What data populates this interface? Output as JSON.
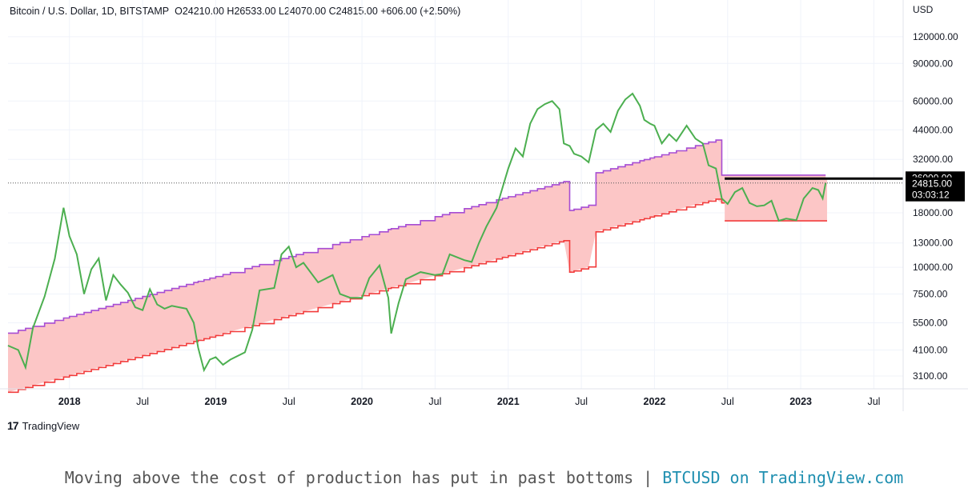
{
  "header": {
    "symbol": "Bitcoin / U.S. Dollar, 1D, BITSTAMP",
    "ohlc": "O24210.00  H26533.00  L24070.00  C24815.00  +606.00 (+2.50%)"
  },
  "price_axis": {
    "unit": "USD",
    "ticks": [
      "120000.00",
      "90000.00",
      "60000.00",
      "44000.00",
      "32000.00",
      "18000.00",
      "13000.00",
      "10000.00",
      "7500.00",
      "5500.00",
      "4100.00",
      "3100.00"
    ],
    "tick_values": [
      120000,
      90000,
      60000,
      44000,
      32000,
      18000,
      13000,
      10000,
      7500,
      5500,
      4100,
      3100
    ],
    "label_26000": "26000.00",
    "label_last": "24815.00",
    "label_countdown": "03:03:12"
  },
  "time_axis": {
    "labels": [
      {
        "text": "2018",
        "bold": true,
        "t": 2018.0
      },
      {
        "text": "Jul",
        "bold": false,
        "t": 2018.5
      },
      {
        "text": "2019",
        "bold": true,
        "t": 2019.0
      },
      {
        "text": "Jul",
        "bold": false,
        "t": 2019.5
      },
      {
        "text": "2020",
        "bold": true,
        "t": 2020.0
      },
      {
        "text": "Jul",
        "bold": false,
        "t": 2020.5
      },
      {
        "text": "2021",
        "bold": true,
        "t": 2021.0
      },
      {
        "text": "Jul",
        "bold": false,
        "t": 2021.5
      },
      {
        "text": "2022",
        "bold": true,
        "t": 2022.0
      },
      {
        "text": "Jul",
        "bold": false,
        "t": 2022.5
      },
      {
        "text": "2023",
        "bold": true,
        "t": 2023.0
      },
      {
        "text": "Jul",
        "bold": false,
        "t": 2023.5
      }
    ]
  },
  "brand": {
    "mark": "17",
    "name": "TradingView"
  },
  "caption": {
    "text": "Moving above the cost of production has put in past bottoms | ",
    "link": "BTCUSD on TradingView.com"
  },
  "colors": {
    "price": "#4caf50",
    "cost_upper": "#a64dd4",
    "cost_lower": "#f23b3b",
    "band_fill": "#fcc6c6",
    "above_fill": "#f06060",
    "grid": "#f0f3fa"
  },
  "chart_data": {
    "type": "line",
    "title": "Bitcoin / U.S. Dollar, 1D, BITSTAMP",
    "y_scale": "log",
    "ylim": [
      2700,
      150000
    ],
    "xlim": [
      "2017-08",
      "2023-09"
    ],
    "last_price": 24815,
    "horizontal_line": 26000,
    "series": [
      {
        "name": "Bitcoin / U.S. Dollar",
        "points": [
          [
            2017.58,
            4300
          ],
          [
            2017.65,
            4100
          ],
          [
            2017.7,
            3400
          ],
          [
            2017.75,
            5200
          ],
          [
            2017.83,
            7300
          ],
          [
            2017.9,
            11000
          ],
          [
            2017.96,
            19000
          ],
          [
            2018.0,
            14000
          ],
          [
            2018.05,
            11500
          ],
          [
            2018.1,
            7500
          ],
          [
            2018.15,
            9800
          ],
          [
            2018.2,
            11000
          ],
          [
            2018.25,
            7000
          ],
          [
            2018.3,
            9200
          ],
          [
            2018.35,
            8300
          ],
          [
            2018.4,
            7600
          ],
          [
            2018.45,
            6500
          ],
          [
            2018.5,
            6300
          ],
          [
            2018.55,
            7900
          ],
          [
            2018.6,
            6700
          ],
          [
            2018.65,
            6400
          ],
          [
            2018.7,
            6600
          ],
          [
            2018.75,
            6500
          ],
          [
            2018.8,
            6400
          ],
          [
            2018.85,
            5500
          ],
          [
            2018.88,
            4200
          ],
          [
            2018.92,
            3300
          ],
          [
            2018.96,
            3700
          ],
          [
            2019.0,
            3800
          ],
          [
            2019.05,
            3500
          ],
          [
            2019.1,
            3700
          ],
          [
            2019.2,
            4000
          ],
          [
            2019.25,
            5100
          ],
          [
            2019.3,
            7800
          ],
          [
            2019.4,
            8000
          ],
          [
            2019.45,
            11500
          ],
          [
            2019.5,
            12500
          ],
          [
            2019.55,
            10000
          ],
          [
            2019.6,
            10500
          ],
          [
            2019.7,
            8500
          ],
          [
            2019.8,
            9200
          ],
          [
            2019.85,
            7500
          ],
          [
            2019.92,
            7200
          ],
          [
            2020.0,
            7200
          ],
          [
            2020.05,
            8900
          ],
          [
            2020.12,
            10200
          ],
          [
            2020.18,
            7200
          ],
          [
            2020.2,
            4900
          ],
          [
            2020.25,
            6800
          ],
          [
            2020.3,
            8800
          ],
          [
            2020.4,
            9500
          ],
          [
            2020.5,
            9200
          ],
          [
            2020.55,
            9300
          ],
          [
            2020.6,
            11500
          ],
          [
            2020.7,
            10800
          ],
          [
            2020.75,
            10600
          ],
          [
            2020.8,
            13000
          ],
          [
            2020.85,
            15500
          ],
          [
            2020.92,
            19000
          ],
          [
            2020.96,
            23500
          ],
          [
            2021.0,
            29000
          ],
          [
            2021.05,
            36000
          ],
          [
            2021.1,
            33000
          ],
          [
            2021.15,
            47000
          ],
          [
            2021.2,
            55000
          ],
          [
            2021.25,
            58000
          ],
          [
            2021.3,
            60000
          ],
          [
            2021.35,
            55000
          ],
          [
            2021.38,
            38000
          ],
          [
            2021.42,
            37000
          ],
          [
            2021.45,
            34000
          ],
          [
            2021.5,
            33000
          ],
          [
            2021.55,
            31000
          ],
          [
            2021.6,
            44000
          ],
          [
            2021.65,
            47000
          ],
          [
            2021.7,
            43000
          ],
          [
            2021.75,
            54000
          ],
          [
            2021.8,
            61000
          ],
          [
            2021.85,
            65000
          ],
          [
            2021.9,
            57000
          ],
          [
            2021.93,
            49000
          ],
          [
            2021.97,
            47000
          ],
          [
            2022.0,
            46000
          ],
          [
            2022.05,
            38000
          ],
          [
            2022.1,
            42000
          ],
          [
            2022.15,
            39000
          ],
          [
            2022.22,
            46000
          ],
          [
            2022.28,
            40000
          ],
          [
            2022.33,
            38000
          ],
          [
            2022.37,
            30000
          ],
          [
            2022.42,
            29000
          ],
          [
            2022.46,
            21000
          ],
          [
            2022.5,
            19800
          ],
          [
            2022.55,
            22500
          ],
          [
            2022.6,
            23500
          ],
          [
            2022.65,
            20000
          ],
          [
            2022.7,
            19300
          ],
          [
            2022.75,
            19500
          ],
          [
            2022.8,
            20500
          ],
          [
            2022.85,
            16500
          ],
          [
            2022.9,
            16900
          ],
          [
            2022.97,
            16600
          ],
          [
            2023.02,
            21000
          ],
          [
            2023.08,
            23500
          ],
          [
            2023.12,
            23000
          ],
          [
            2023.15,
            21000
          ],
          [
            2023.17,
            24815
          ]
        ]
      }
    ]
  }
}
